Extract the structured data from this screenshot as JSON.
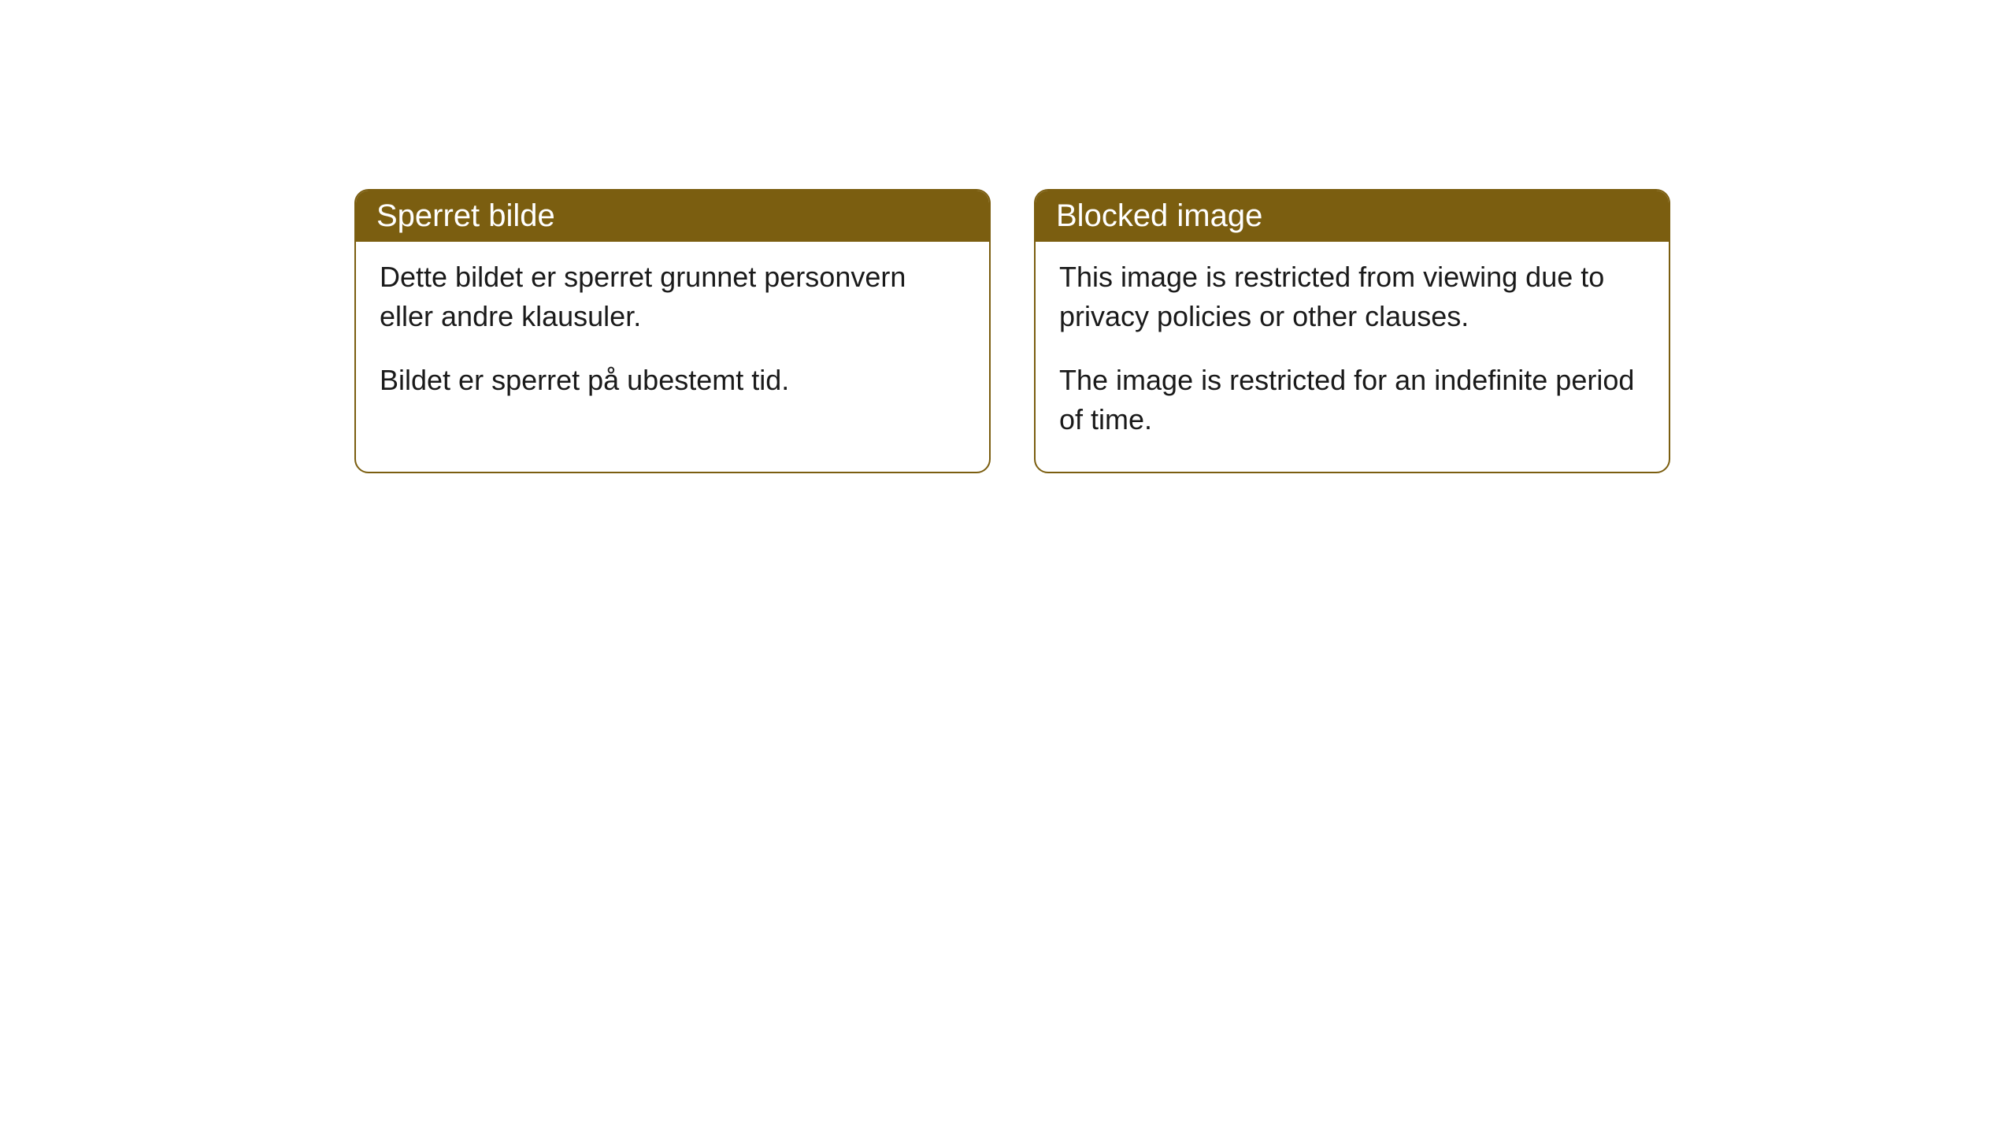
{
  "cards": [
    {
      "header": "Sperret bilde",
      "paragraph1": "Dette bildet er sperret grunnet personvern eller andre klausuler.",
      "paragraph2": "Bildet er sperret på ubestemt tid."
    },
    {
      "header": "Blocked image",
      "paragraph1": "This image is restricted from viewing due to privacy policies or other clauses.",
      "paragraph2": "The image is restricted for an indefinite period of time."
    }
  ],
  "styling": {
    "header_bg_color": "#7b5e10",
    "header_text_color": "#ffffff",
    "border_color": "#7b5e10",
    "body_bg_color": "#ffffff",
    "body_text_color": "#1a1a1a",
    "border_radius": 18,
    "header_fontsize": 40,
    "body_fontsize": 36
  }
}
